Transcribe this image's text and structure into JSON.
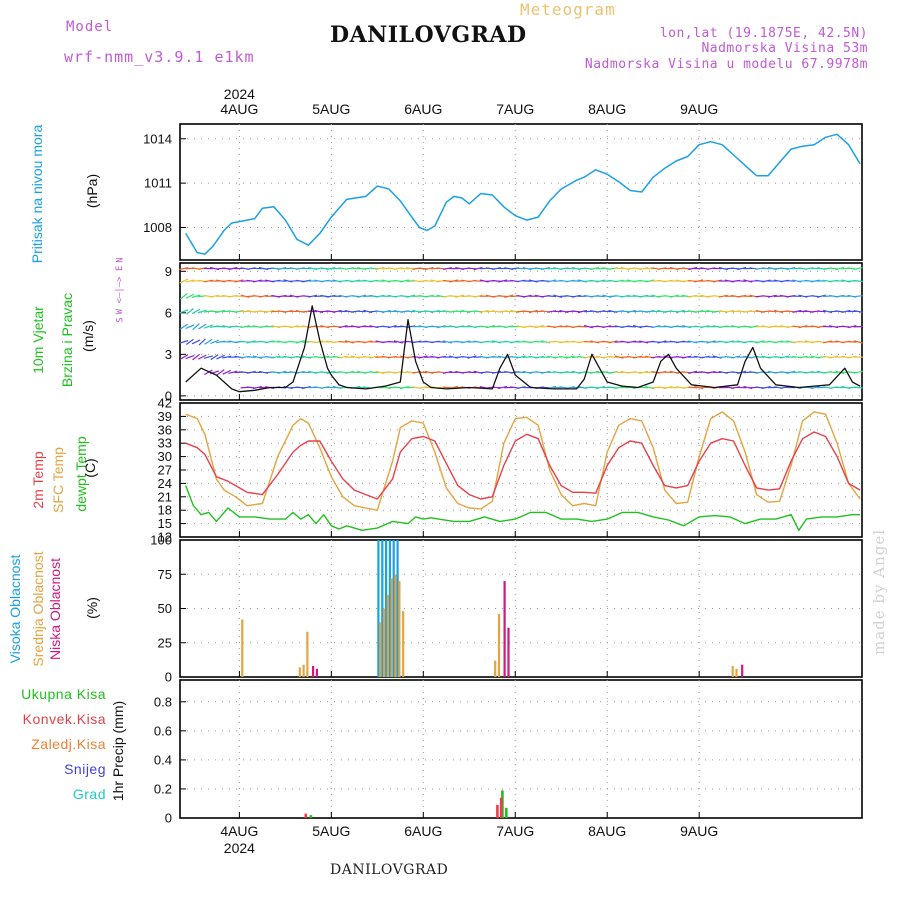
{
  "header": {
    "model_label": "Model",
    "model_name": "wrf-nmm_v3.9.1  e1km",
    "meteogram": "Meteogram",
    "title": "DANILOVGRAD",
    "lonlat": "lon,lat (19.1875E, 42.5N)",
    "altitude": "Nadmorska Visina 53m",
    "model_altitude": "Nadmorska Visina u modelu 67.9978m"
  },
  "footer": {
    "title": "DANILOVGRAD",
    "watermark": "made by Angel"
  },
  "time_axis": {
    "year": "2024",
    "days": [
      "4AUG",
      "5AUG",
      "6AUG",
      "7AUG",
      "8AUG",
      "9AUG"
    ]
  },
  "colors": {
    "pressure": "#1aa0e6",
    "temp2m": "#e8404a",
    "sfc": "#e4a440",
    "dewpt": "#20c020",
    "high_cloud": "#1aa0e6",
    "mid_cloud": "#e4a440",
    "low_cloud": "#d01880",
    "total_precip": "#20c020",
    "conv_precip": "#e8404a",
    "frozen_precip": "#f08030",
    "snow": "#4040e0",
    "graupel": "#20c8c8",
    "wind_label": "#20c020",
    "wind_compass": "#c05ad6"
  },
  "panels": {
    "pressure": {
      "label": "Pritisak na nivou mora",
      "unit": "(hPa)",
      "ticks": [
        "1008",
        "1011",
        "1014"
      ]
    },
    "wind": {
      "label1": "10m Vjetar",
      "label2": "Brzina i Pravac",
      "unit": "(m/s)",
      "compass": "W  <–|–>  E",
      "compass_n": "N",
      "compass_s": "S",
      "ticks": [
        "0",
        "3",
        "6",
        "9"
      ]
    },
    "temp": {
      "label1": "2m Temp",
      "label2": "SFC Temp",
      "label3": "dewpt Temp",
      "unit": "(C)",
      "ticks": [
        "12",
        "15",
        "18",
        "21",
        "24",
        "27",
        "30",
        "33",
        "36",
        "39",
        "42"
      ]
    },
    "cloud": {
      "label1": "Visoka Oblacnost",
      "label2": "Srednja Oblacnost",
      "label3": "Niska Oblacnost",
      "unit": "(%)",
      "ticks": [
        "0",
        "25",
        "50",
        "75",
        "100"
      ]
    },
    "precip": {
      "unit": "1hr Precip (mm)",
      "legend": [
        "Ukupna Kisa",
        "Konvek.Kisa",
        "Zaledj.Kisa",
        "Snijeg",
        "Grad"
      ],
      "ticks": [
        "0",
        "0.2",
        "0.4",
        "0.6",
        "0.8"
      ]
    }
  },
  "chart_data": [
    {
      "type": "line",
      "title": "Pritisak na nivou mora",
      "ylabel": "(hPa)",
      "ylim": [
        1005.8,
        1015.0
      ],
      "x_unit": "hours since 4AUG 00 UTC",
      "series": [
        {
          "name": "Pritisak na nivou mora",
          "x": [
            -14,
            -11,
            -9,
            -7,
            -4,
            -2,
            0,
            4,
            6,
            9,
            12,
            15,
            18,
            21,
            24,
            28,
            33,
            36,
            39,
            42,
            45,
            47,
            49,
            51,
            54,
            56,
            58,
            60,
            63,
            66,
            69,
            72,
            75,
            78,
            81,
            84,
            86,
            88,
            90,
            93,
            96,
            99,
            102,
            105,
            108,
            111,
            114,
            117,
            120,
            123,
            126,
            129,
            132,
            135,
            138,
            141,
            144,
            147,
            150,
            153,
            156,
            159,
            162
          ],
          "y": [
            1007.6,
            1006.3,
            1006.2,
            1006.7,
            1007.8,
            1008.3,
            1008.4,
            1008.6,
            1009.3,
            1009.4,
            1008.5,
            1007.2,
            1006.8,
            1007.6,
            1008.7,
            1009.9,
            1010.1,
            1010.8,
            1010.6,
            1009.8,
            1008.7,
            1008.0,
            1007.8,
            1008.1,
            1009.7,
            1010.1,
            1010.0,
            1009.6,
            1010.3,
            1010.2,
            1009.4,
            1008.8,
            1008.5,
            1008.7,
            1009.8,
            1010.6,
            1010.9,
            1011.2,
            1011.4,
            1011.9,
            1011.6,
            1011.1,
            1010.5,
            1010.4,
            1011.4,
            1012.0,
            1012.5,
            1012.8,
            1013.6,
            1013.8,
            1013.6,
            1012.9,
            1012.2,
            1011.5,
            1011.5,
            1012.4,
            1013.3,
            1013.5,
            1013.6,
            1014.1,
            1014.3,
            1013.6,
            1012.3
          ]
        }
      ]
    },
    {
      "type": "line",
      "title": "10m Vjetar Brzina i Pravac",
      "ylabel": "(m/s)",
      "ylim": [
        -0.3,
        9.6
      ],
      "x_unit": "hours since 4AUG 00 UTC",
      "series": [
        {
          "name": "10m Vjetar",
          "x": [
            -14,
            -10,
            -6,
            -2,
            0,
            4,
            8,
            12,
            14,
            17,
            19,
            21,
            23,
            24,
            26,
            28,
            33,
            38,
            42,
            44,
            46,
            48,
            50,
            54,
            60,
            66,
            68,
            70,
            72,
            76,
            82,
            88,
            90,
            92,
            94,
            96,
            100,
            104,
            108,
            110,
            112,
            114,
            118,
            124,
            130,
            132,
            134,
            136,
            140,
            146,
            154,
            158,
            160,
            162
          ],
          "y": [
            1.0,
            2.0,
            1.5,
            0.5,
            0.3,
            0.4,
            0.6,
            0.6,
            1.0,
            3.5,
            6.5,
            4.0,
            2.0,
            1.5,
            0.8,
            0.6,
            0.5,
            0.7,
            1.0,
            5.5,
            2.5,
            1.0,
            0.6,
            0.5,
            0.6,
            0.5,
            2.0,
            3.0,
            1.5,
            0.6,
            0.5,
            0.5,
            1.2,
            3.0,
            2.0,
            1.0,
            0.7,
            0.6,
            1.0,
            2.5,
            3.0,
            2.0,
            0.8,
            0.6,
            0.8,
            2.5,
            3.5,
            2.0,
            0.8,
            0.6,
            0.8,
            2.0,
            1.0,
            0.7
          ]
        }
      ]
    },
    {
      "type": "line",
      "title": "Temperatura",
      "ylabel": "(C)",
      "ylim": [
        12,
        42
      ],
      "x_unit": "hours since 4AUG 00 UTC",
      "series": [
        {
          "name": "2m Temp",
          "x": [
            -14,
            -11,
            -9,
            -6,
            -3,
            -1,
            2,
            6,
            10,
            14,
            16,
            18,
            21,
            24,
            27,
            30,
            33,
            36,
            40,
            42,
            45,
            48,
            51,
            54,
            57,
            60,
            63,
            66,
            69,
            72,
            75,
            78,
            81,
            84,
            87,
            90,
            93,
            96,
            99,
            102,
            105,
            108,
            111,
            114,
            117,
            120,
            123,
            126,
            129,
            132,
            135,
            138,
            141,
            144,
            147,
            150,
            153,
            156,
            159,
            162
          ],
          "y": [
            33.0,
            32.0,
            30.5,
            25.5,
            24.5,
            23.5,
            22.0,
            21.5,
            26.0,
            31.0,
            32.5,
            33.5,
            33.5,
            29.0,
            25.0,
            22.5,
            21.5,
            20.5,
            25.0,
            31.0,
            34.0,
            34.5,
            33.5,
            28.5,
            23.5,
            21.5,
            20.5,
            21.0,
            28.0,
            33.5,
            35.0,
            34.0,
            28.0,
            23.5,
            22.0,
            22.0,
            21.8,
            28.0,
            32.0,
            33.5,
            33.0,
            28.0,
            23.5,
            23.0,
            23.5,
            29.0,
            33.0,
            34.0,
            33.5,
            28.0,
            23.0,
            22.5,
            22.8,
            29.0,
            34.0,
            35.5,
            34.5,
            30.0,
            24.0,
            22.5
          ]
        },
        {
          "name": "SFC Temp",
          "x": [
            -14,
            -11,
            -9,
            -6,
            -4,
            -1,
            2,
            6,
            10,
            14,
            16,
            18,
            21,
            24,
            27,
            30,
            33,
            36,
            40,
            42,
            45,
            48,
            51,
            54,
            57,
            60,
            63,
            66,
            69,
            72,
            75,
            78,
            81,
            84,
            87,
            90,
            93,
            96,
            99,
            102,
            105,
            108,
            111,
            114,
            117,
            120,
            123,
            126,
            129,
            132,
            135,
            138,
            141,
            144,
            147,
            150,
            153,
            156,
            159,
            162
          ],
          "y": [
            39.5,
            38.5,
            35.0,
            25.0,
            22.5,
            21.0,
            19.0,
            19.5,
            30.0,
            37.0,
            38.5,
            37.5,
            32.0,
            25.5,
            21.0,
            19.0,
            18.5,
            18.0,
            29.0,
            36.5,
            38.0,
            37.5,
            31.0,
            23.0,
            19.5,
            18.5,
            18.3,
            20.0,
            33.0,
            38.5,
            38.8,
            37.0,
            27.0,
            21.5,
            19.0,
            19.5,
            19.0,
            31.0,
            37.0,
            38.5,
            38.0,
            32.0,
            22.5,
            19.5,
            19.8,
            30.0,
            38.5,
            40.0,
            38.0,
            31.0,
            21.5,
            19.8,
            20.0,
            28.0,
            38.0,
            40.0,
            39.5,
            33.0,
            24.0,
            20.5
          ]
        },
        {
          "name": "dewpt Temp",
          "x": [
            -14,
            -12,
            -10,
            -8,
            -6,
            -3,
            0,
            4,
            8,
            12,
            14,
            16,
            18,
            20,
            22,
            24,
            26,
            28,
            32,
            36,
            40,
            44,
            46,
            48,
            50,
            52,
            56,
            60,
            64,
            68,
            72,
            76,
            80,
            84,
            88,
            92,
            96,
            100,
            104,
            108,
            112,
            116,
            120,
            124,
            128,
            132,
            136,
            140,
            144,
            146,
            148,
            152,
            156,
            160,
            162
          ],
          "y": [
            23.5,
            19.0,
            17.0,
            17.5,
            15.5,
            18.5,
            16.5,
            16.5,
            16.0,
            16.0,
            17.5,
            16.0,
            17.0,
            15.0,
            17.0,
            14.5,
            13.8,
            14.5,
            13.5,
            14.0,
            15.5,
            15.0,
            16.5,
            16.0,
            16.3,
            16.0,
            15.5,
            15.5,
            16.5,
            15.5,
            16.0,
            17.5,
            17.5,
            16.0,
            16.0,
            15.5,
            16.0,
            17.5,
            17.5,
            16.5,
            15.8,
            14.5,
            16.5,
            16.8,
            16.5,
            15.0,
            16.0,
            16.0,
            17.0,
            13.5,
            16.0,
            16.5,
            16.5,
            17.0,
            17.0
          ]
        }
      ]
    },
    {
      "type": "bar",
      "title": "Oblacnost",
      "ylabel": "(%)",
      "ylim": [
        0,
        100
      ],
      "x_unit": "hours since 4AUG 00 UTC",
      "series": [
        {
          "name": "Visoka Oblacnost",
          "x": [
            36,
            37,
            38,
            39,
            40,
            41
          ],
          "values": [
            100,
            100,
            100,
            100,
            100,
            100
          ]
        },
        {
          "name": "Srednja Oblacnost",
          "x": [
            0,
            15,
            16,
            17,
            36,
            37,
            38,
            39,
            40,
            41,
            42,
            66,
            67,
            128,
            129
          ],
          "values": [
            42,
            7,
            9,
            33,
            40,
            50,
            60,
            72,
            75,
            70,
            48,
            12,
            46,
            8,
            6
          ]
        },
        {
          "name": "Niska Oblacnost",
          "x": [
            18,
            19,
            68,
            69,
            130
          ],
          "values": [
            8,
            6,
            70,
            36,
            9
          ]
        }
      ]
    },
    {
      "type": "bar",
      "title": "1hr Precip",
      "ylabel": "1hr Precip (mm)",
      "ylim": [
        0,
        0.95
      ],
      "x_unit": "hours since 4AUG 00 UTC",
      "series": [
        {
          "name": "Ukupna Kisa",
          "x": [
            18,
            68,
            69
          ],
          "values": [
            0.02,
            0.19,
            0.07
          ]
        },
        {
          "name": "Konvek.Kisa",
          "x": [
            17,
            67,
            68
          ],
          "values": [
            0.03,
            0.09,
            0.14
          ]
        }
      ]
    }
  ]
}
